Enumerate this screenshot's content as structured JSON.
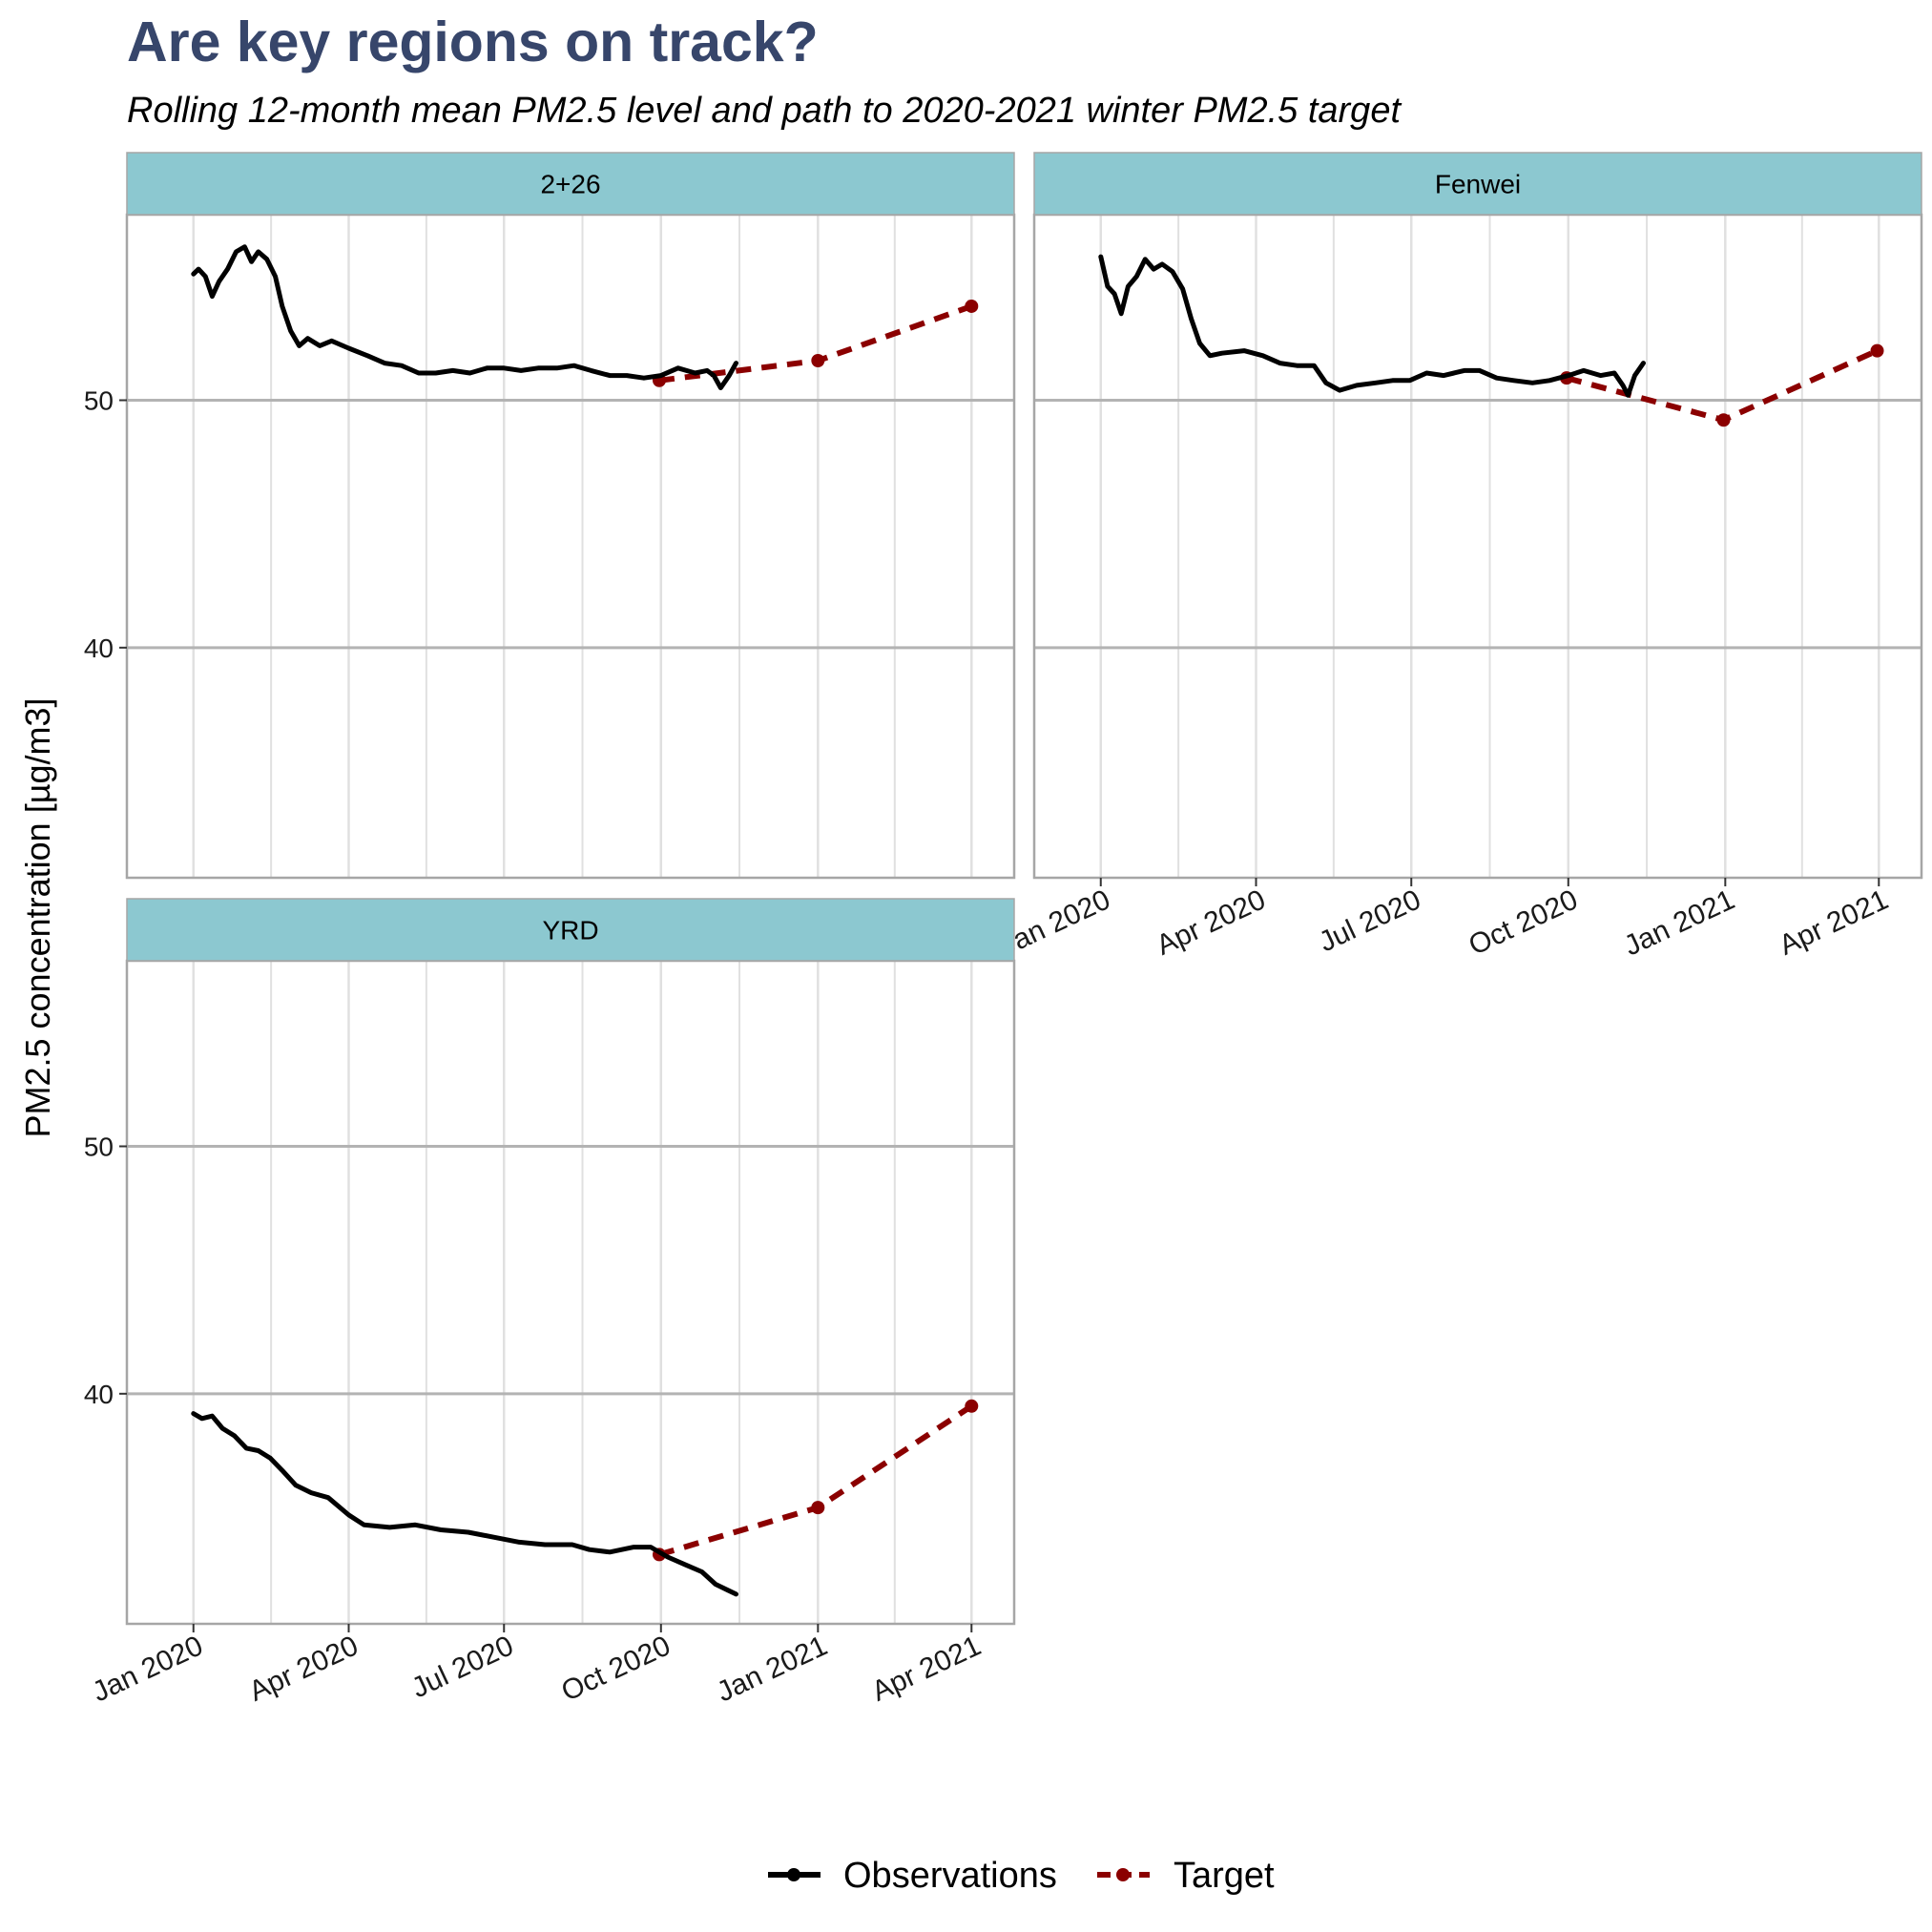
{
  "title": "Are key regions on track?",
  "subtitle": "Rolling 12-month mean PM2.5 level and path to 2020-2021 winter PM2.5 target",
  "colors": {
    "title": "#37466b",
    "strip": "#8cc8d0",
    "observations": "#000000",
    "target": "#8b0000",
    "grid_major": "#b3b3b3",
    "grid_minor": "#e0e0e0",
    "panel_border": "#a6a6a6"
  },
  "chart_data": {
    "type": "line",
    "xlabel": "",
    "ylabel": "PM2.5 concentration [µg/m3]",
    "ylim": [
      30.7,
      57.5
    ],
    "yticks": [
      40,
      50
    ],
    "xlim": [
      "2019-11-23",
      "2021-04-26"
    ],
    "xticks": [
      "2020-01-01",
      "2020-04-01",
      "2020-07-01",
      "2020-10-01",
      "2021-01-01",
      "2021-04-01"
    ],
    "xtick_labels": [
      "Jan 2020",
      "Apr 2020",
      "Jul 2020",
      "Oct 2020",
      "Jan 2021",
      "Apr 2021"
    ],
    "grid": true,
    "legend": {
      "position": "bottom",
      "entries": [
        {
          "label": "Observations",
          "style": "solid",
          "color": "#000000"
        },
        {
          "label": "Target",
          "style": "dashed",
          "color": "#8b0000"
        }
      ]
    },
    "facets": [
      {
        "name": "2+26",
        "observations": [
          [
            "2020-01-01",
            55.1
          ],
          [
            "2020-01-04",
            55.3
          ],
          [
            "2020-01-08",
            55.0
          ],
          [
            "2020-01-12",
            54.2
          ],
          [
            "2020-01-16",
            54.8
          ],
          [
            "2020-01-21",
            55.3
          ],
          [
            "2020-01-26",
            56.0
          ],
          [
            "2020-01-31",
            56.2
          ],
          [
            "2020-02-04",
            55.6
          ],
          [
            "2020-02-08",
            56.0
          ],
          [
            "2020-02-13",
            55.7
          ],
          [
            "2020-02-18",
            55.0
          ],
          [
            "2020-02-22",
            53.8
          ],
          [
            "2020-02-27",
            52.8
          ],
          [
            "2020-03-03",
            52.2
          ],
          [
            "2020-03-08",
            52.5
          ],
          [
            "2020-03-15",
            52.2
          ],
          [
            "2020-03-22",
            52.4
          ],
          [
            "2020-04-01",
            52.1
          ],
          [
            "2020-04-12",
            51.8
          ],
          [
            "2020-04-22",
            51.5
          ],
          [
            "2020-05-02",
            51.4
          ],
          [
            "2020-05-12",
            51.1
          ],
          [
            "2020-05-22",
            51.1
          ],
          [
            "2020-06-01",
            51.2
          ],
          [
            "2020-06-11",
            51.1
          ],
          [
            "2020-06-21",
            51.3
          ],
          [
            "2020-07-01",
            51.3
          ],
          [
            "2020-07-11",
            51.2
          ],
          [
            "2020-07-21",
            51.3
          ],
          [
            "2020-08-01",
            51.3
          ],
          [
            "2020-08-11",
            51.4
          ],
          [
            "2020-08-21",
            51.2
          ],
          [
            "2020-09-01",
            51.0
          ],
          [
            "2020-09-11",
            51.0
          ],
          [
            "2020-09-21",
            50.9
          ],
          [
            "2020-10-01",
            51.0
          ],
          [
            "2020-10-11",
            51.3
          ],
          [
            "2020-10-21",
            51.1
          ],
          [
            "2020-10-28",
            51.2
          ],
          [
            "2020-11-01",
            51.0
          ],
          [
            "2020-11-05",
            50.5
          ],
          [
            "2020-11-10",
            51.0
          ],
          [
            "2020-11-14",
            51.5
          ]
        ],
        "target": [
          [
            "2020-09-30",
            50.8
          ],
          [
            "2021-01-01",
            51.6
          ],
          [
            "2021-04-01",
            53.8
          ]
        ]
      },
      {
        "name": "Fenwei",
        "observations": [
          [
            "2020-01-01",
            55.8
          ],
          [
            "2020-01-05",
            54.6
          ],
          [
            "2020-01-09",
            54.3
          ],
          [
            "2020-01-13",
            53.5
          ],
          [
            "2020-01-17",
            54.6
          ],
          [
            "2020-01-22",
            55.0
          ],
          [
            "2020-01-27",
            55.7
          ],
          [
            "2020-02-01",
            55.3
          ],
          [
            "2020-02-06",
            55.5
          ],
          [
            "2020-02-12",
            55.2
          ],
          [
            "2020-02-18",
            54.5
          ],
          [
            "2020-02-23",
            53.3
          ],
          [
            "2020-02-28",
            52.3
          ],
          [
            "2020-03-05",
            51.8
          ],
          [
            "2020-03-12",
            51.9
          ],
          [
            "2020-03-25",
            52.0
          ],
          [
            "2020-04-05",
            51.8
          ],
          [
            "2020-04-15",
            51.5
          ],
          [
            "2020-04-25",
            51.4
          ],
          [
            "2020-05-05",
            51.4
          ],
          [
            "2020-05-12",
            50.7
          ],
          [
            "2020-05-20",
            50.4
          ],
          [
            "2020-05-30",
            50.6
          ],
          [
            "2020-06-10",
            50.7
          ],
          [
            "2020-06-20",
            50.8
          ],
          [
            "2020-06-30",
            50.8
          ],
          [
            "2020-07-10",
            51.1
          ],
          [
            "2020-07-20",
            51.0
          ],
          [
            "2020-08-01",
            51.2
          ],
          [
            "2020-08-10",
            51.2
          ],
          [
            "2020-08-20",
            50.9
          ],
          [
            "2020-08-30",
            50.8
          ],
          [
            "2020-09-10",
            50.7
          ],
          [
            "2020-09-20",
            50.8
          ],
          [
            "2020-10-01",
            51.0
          ],
          [
            "2020-10-10",
            51.2
          ],
          [
            "2020-10-20",
            51.0
          ],
          [
            "2020-10-28",
            51.1
          ],
          [
            "2020-11-02",
            50.6
          ],
          [
            "2020-11-05",
            50.2
          ],
          [
            "2020-11-09",
            51.0
          ],
          [
            "2020-11-14",
            51.5
          ]
        ],
        "target": [
          [
            "2020-09-30",
            50.9
          ],
          [
            "2020-12-31",
            49.2
          ],
          [
            "2021-03-31",
            52.0
          ]
        ]
      },
      {
        "name": "YRD",
        "observations": [
          [
            "2020-01-01",
            39.2
          ],
          [
            "2020-01-06",
            39.0
          ],
          [
            "2020-01-12",
            39.1
          ],
          [
            "2020-01-18",
            38.6
          ],
          [
            "2020-01-25",
            38.3
          ],
          [
            "2020-02-01",
            37.8
          ],
          [
            "2020-02-08",
            37.7
          ],
          [
            "2020-02-15",
            37.4
          ],
          [
            "2020-02-22",
            36.9
          ],
          [
            "2020-03-01",
            36.3
          ],
          [
            "2020-03-10",
            36.0
          ],
          [
            "2020-03-20",
            35.8
          ],
          [
            "2020-04-01",
            35.1
          ],
          [
            "2020-04-10",
            34.7
          ],
          [
            "2020-04-25",
            34.6
          ],
          [
            "2020-05-10",
            34.7
          ],
          [
            "2020-05-25",
            34.5
          ],
          [
            "2020-06-10",
            34.4
          ],
          [
            "2020-06-25",
            34.2
          ],
          [
            "2020-07-10",
            34.0
          ],
          [
            "2020-07-25",
            33.9
          ],
          [
            "2020-08-10",
            33.9
          ],
          [
            "2020-08-20",
            33.7
          ],
          [
            "2020-09-01",
            33.6
          ],
          [
            "2020-09-15",
            33.8
          ],
          [
            "2020-09-25",
            33.8
          ],
          [
            "2020-10-05",
            33.4
          ],
          [
            "2020-10-15",
            33.1
          ],
          [
            "2020-10-25",
            32.8
          ],
          [
            "2020-11-02",
            32.3
          ],
          [
            "2020-11-14",
            31.9
          ]
        ],
        "target": [
          [
            "2020-09-30",
            33.5
          ],
          [
            "2021-01-01",
            35.4
          ],
          [
            "2021-04-01",
            39.5
          ]
        ]
      }
    ]
  }
}
